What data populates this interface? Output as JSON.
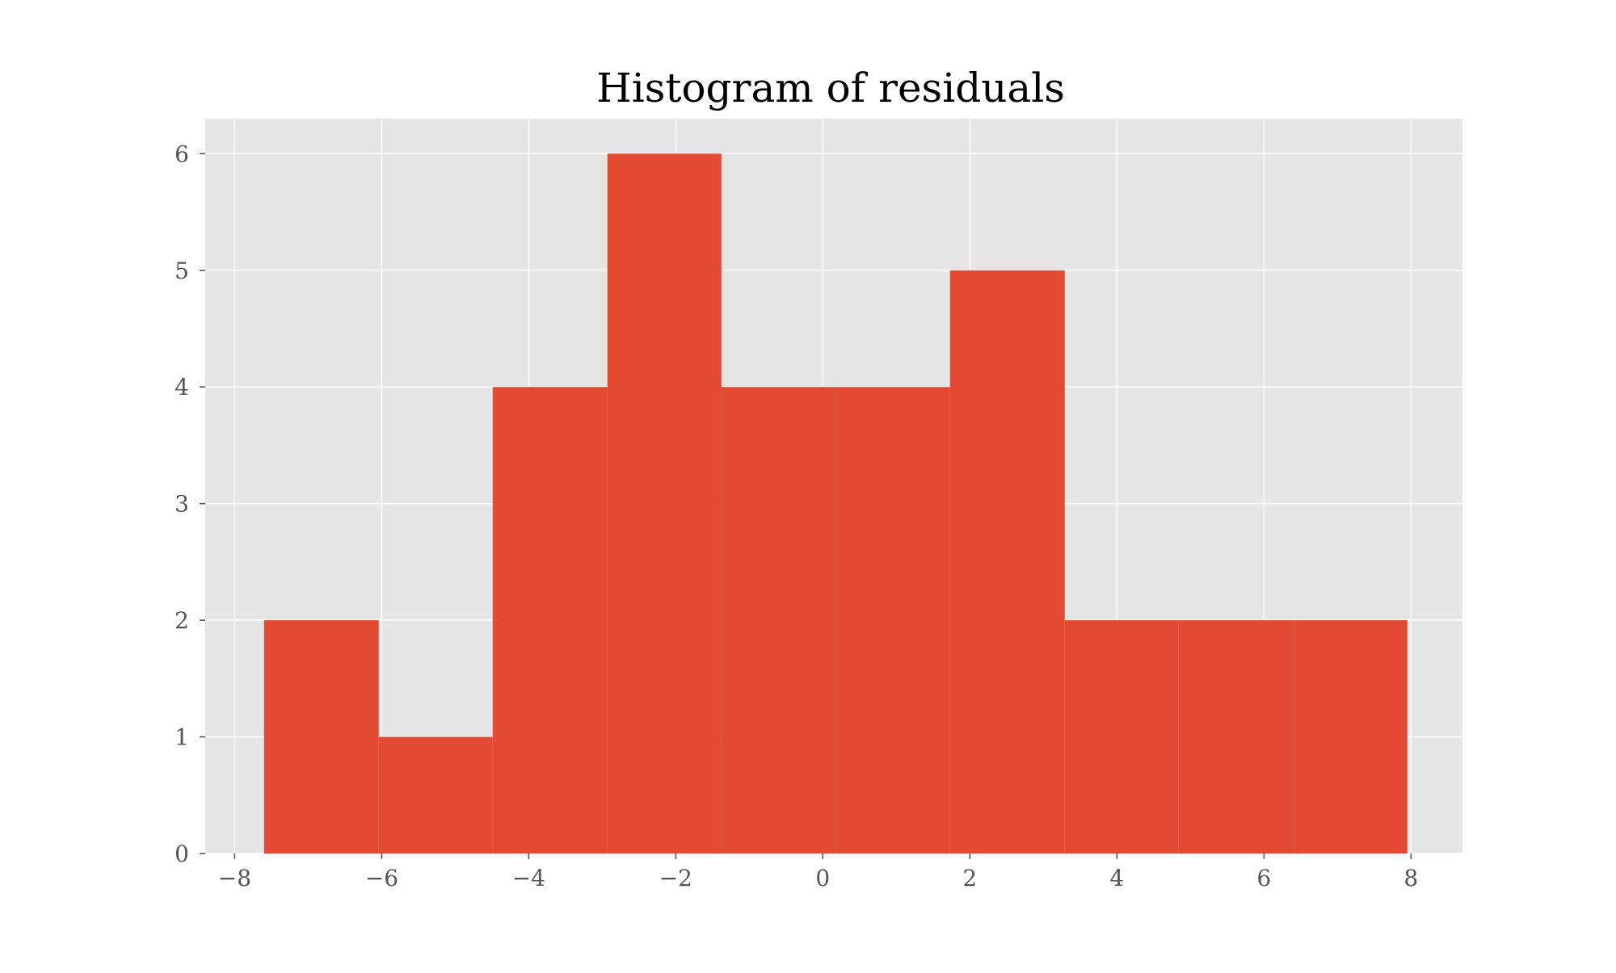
{
  "chart_data": {
    "type": "bar",
    "title": "Histogram of residuals",
    "xlabel": "",
    "ylabel": "",
    "xlim": [
      -8.4,
      8.7
    ],
    "ylim": [
      0,
      6.3
    ],
    "grid": true,
    "bar_color": "#E24A33",
    "plot_background": "#E5E5E5",
    "grid_color": "#FFFFFF",
    "bin_edges": [
      -7.6,
      -6.04,
      -4.49,
      -2.93,
      -1.38,
      0.18,
      1.73,
      3.29,
      4.84,
      6.4,
      7.95
    ],
    "values": [
      2,
      1,
      4,
      6,
      4,
      4,
      5,
      2,
      2,
      2
    ],
    "x_ticks": [
      -8,
      -6,
      -4,
      -2,
      0,
      2,
      4,
      6,
      8
    ],
    "x_tick_labels": [
      "−8",
      "−6",
      "−4",
      "−2",
      "0",
      "2",
      "4",
      "6",
      "8"
    ],
    "y_ticks": [
      0,
      1,
      2,
      3,
      4,
      5,
      6
    ],
    "y_tick_labels": [
      "0",
      "1",
      "2",
      "3",
      "4",
      "5",
      "6"
    ]
  }
}
